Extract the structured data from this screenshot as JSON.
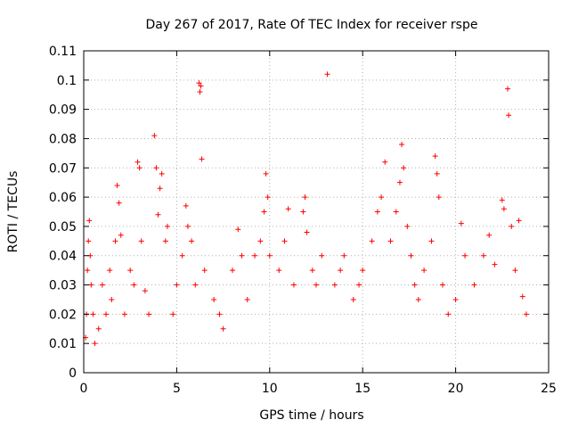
{
  "chart_data": {
    "type": "scatter",
    "title": "Day 267 of 2017, Rate Of TEC Index for receiver rspe",
    "xlabel": "GPS time / hours",
    "ylabel": "ROTI / TECUs",
    "xlim": [
      0,
      25
    ],
    "ylim": [
      0,
      0.11
    ],
    "x_ticks": [
      "0",
      "5",
      "10",
      "15",
      "20",
      "25"
    ],
    "y_ticks": [
      "0",
      "0.01",
      "0.02",
      "0.03",
      "0.04",
      "0.05",
      "0.06",
      "0.07",
      "0.08",
      "0.09",
      "0.1",
      "0.11"
    ],
    "x_tick_values": [
      0,
      5,
      10,
      15,
      20,
      25
    ],
    "y_tick_values": [
      0,
      0.01,
      0.02,
      0.03,
      0.04,
      0.05,
      0.06,
      0.07,
      0.08,
      0.09,
      0.1,
      0.11
    ],
    "grid": true,
    "marker": "+",
    "color": "#ff0000",
    "series": [
      {
        "points": [
          [
            0.1,
            0.012
          ],
          [
            0.15,
            0.02
          ],
          [
            0.2,
            0.035
          ],
          [
            0.25,
            0.045
          ],
          [
            0.3,
            0.052
          ],
          [
            0.35,
            0.04
          ],
          [
            0.4,
            0.03
          ],
          [
            0.5,
            0.02
          ],
          [
            0.6,
            0.01
          ],
          [
            0.8,
            0.015
          ],
          [
            1.0,
            0.03
          ],
          [
            1.2,
            0.02
          ],
          [
            1.4,
            0.035
          ],
          [
            1.5,
            0.025
          ],
          [
            1.7,
            0.045
          ],
          [
            1.8,
            0.064
          ],
          [
            1.9,
            0.058
          ],
          [
            2.0,
            0.047
          ],
          [
            2.2,
            0.02
          ],
          [
            2.5,
            0.035
          ],
          [
            2.7,
            0.03
          ],
          [
            2.9,
            0.072
          ],
          [
            3.0,
            0.07
          ],
          [
            3.1,
            0.045
          ],
          [
            3.3,
            0.028
          ],
          [
            3.5,
            0.02
          ],
          [
            3.8,
            0.081
          ],
          [
            3.9,
            0.07
          ],
          [
            4.0,
            0.054
          ],
          [
            4.1,
            0.063
          ],
          [
            4.2,
            0.068
          ],
          [
            4.4,
            0.045
          ],
          [
            4.5,
            0.05
          ],
          [
            4.8,
            0.02
          ],
          [
            5.0,
            0.03
          ],
          [
            5.3,
            0.04
          ],
          [
            5.5,
            0.057
          ],
          [
            5.6,
            0.05
          ],
          [
            5.8,
            0.045
          ],
          [
            6.0,
            0.03
          ],
          [
            6.2,
            0.099
          ],
          [
            6.25,
            0.096
          ],
          [
            6.3,
            0.098
          ],
          [
            6.35,
            0.073
          ],
          [
            6.5,
            0.035
          ],
          [
            7.0,
            0.025
          ],
          [
            7.3,
            0.02
          ],
          [
            7.5,
            0.015
          ],
          [
            8.0,
            0.035
          ],
          [
            8.3,
            0.049
          ],
          [
            8.5,
            0.04
          ],
          [
            8.8,
            0.025
          ],
          [
            9.2,
            0.04
          ],
          [
            9.5,
            0.045
          ],
          [
            9.7,
            0.055
          ],
          [
            9.8,
            0.068
          ],
          [
            9.9,
            0.06
          ],
          [
            10.0,
            0.04
          ],
          [
            10.5,
            0.035
          ],
          [
            10.8,
            0.045
          ],
          [
            11.0,
            0.056
          ],
          [
            11.3,
            0.03
          ],
          [
            11.8,
            0.055
          ],
          [
            11.9,
            0.06
          ],
          [
            12.0,
            0.048
          ],
          [
            12.3,
            0.035
          ],
          [
            12.5,
            0.03
          ],
          [
            12.8,
            0.04
          ],
          [
            13.1,
            0.102
          ],
          [
            13.5,
            0.03
          ],
          [
            13.8,
            0.035
          ],
          [
            14.0,
            0.04
          ],
          [
            14.5,
            0.025
          ],
          [
            14.8,
            0.03
          ],
          [
            15.0,
            0.035
          ],
          [
            15.5,
            0.045
          ],
          [
            15.8,
            0.055
          ],
          [
            16.0,
            0.06
          ],
          [
            16.2,
            0.072
          ],
          [
            16.5,
            0.045
          ],
          [
            16.8,
            0.055
          ],
          [
            17.0,
            0.065
          ],
          [
            17.1,
            0.078
          ],
          [
            17.2,
            0.07
          ],
          [
            17.4,
            0.05
          ],
          [
            17.6,
            0.04
          ],
          [
            17.8,
            0.03
          ],
          [
            18.0,
            0.025
          ],
          [
            18.3,
            0.035
          ],
          [
            18.7,
            0.045
          ],
          [
            18.9,
            0.074
          ],
          [
            19.0,
            0.068
          ],
          [
            19.1,
            0.06
          ],
          [
            19.3,
            0.03
          ],
          [
            19.6,
            0.02
          ],
          [
            20.0,
            0.025
          ],
          [
            20.3,
            0.051
          ],
          [
            20.5,
            0.04
          ],
          [
            21.0,
            0.03
          ],
          [
            21.5,
            0.04
          ],
          [
            21.8,
            0.047
          ],
          [
            22.1,
            0.037
          ],
          [
            22.5,
            0.059
          ],
          [
            22.6,
            0.056
          ],
          [
            22.8,
            0.097
          ],
          [
            22.85,
            0.088
          ],
          [
            23.0,
            0.05
          ],
          [
            23.2,
            0.035
          ],
          [
            23.4,
            0.052
          ],
          [
            23.6,
            0.026
          ],
          [
            23.8,
            0.02
          ]
        ]
      }
    ]
  }
}
